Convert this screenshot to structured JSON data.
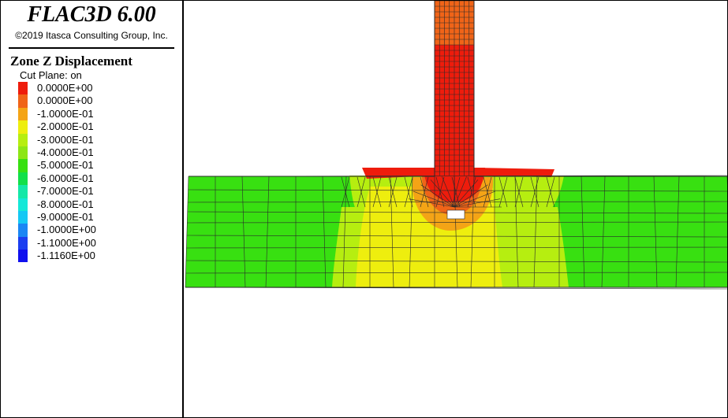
{
  "app": {
    "title": "FLAC3D 6.00",
    "copyright": "©2019 Itasca Consulting Group, Inc."
  },
  "legend": {
    "title": "Zone Z Displacement",
    "cut_plane": "Cut Plane: on",
    "items": [
      {
        "label": "0.0000E+00",
        "color": "#ee1c0c"
      },
      {
        "label": "0.0000E+00",
        "color": "#f06418"
      },
      {
        "label": "-1.0000E-01",
        "color": "#f4a416"
      },
      {
        "label": "-2.0000E-01",
        "color": "#eeee0e"
      },
      {
        "label": "-3.0000E-01",
        "color": "#b6ee10"
      },
      {
        "label": "-4.0000E-01",
        "color": "#8de615"
      },
      {
        "label": "-5.0000E-01",
        "color": "#38e011"
      },
      {
        "label": "-6.0000E-01",
        "color": "#12e04a"
      },
      {
        "label": "-7.0000E-01",
        "color": "#14e8a8"
      },
      {
        "label": "-8.0000E-01",
        "color": "#14e8d8"
      },
      {
        "label": "-9.0000E-01",
        "color": "#15c8f4"
      },
      {
        "label": "-1.0000E+00",
        "color": "#1a86f4"
      },
      {
        "label": "-1.1000E+00",
        "color": "#1b3ef0"
      },
      {
        "label": "-1.1160E+00",
        "color": "#1010ee"
      }
    ]
  },
  "plot": {
    "colors": {
      "red": "#ee1c0c",
      "orange": "#f06418",
      "light_orange": "#f4a416",
      "yellow": "#eeee0e",
      "yellow_green": "#b6ee10",
      "green": "#38e011",
      "mesh": "#2a2a2a"
    }
  }
}
